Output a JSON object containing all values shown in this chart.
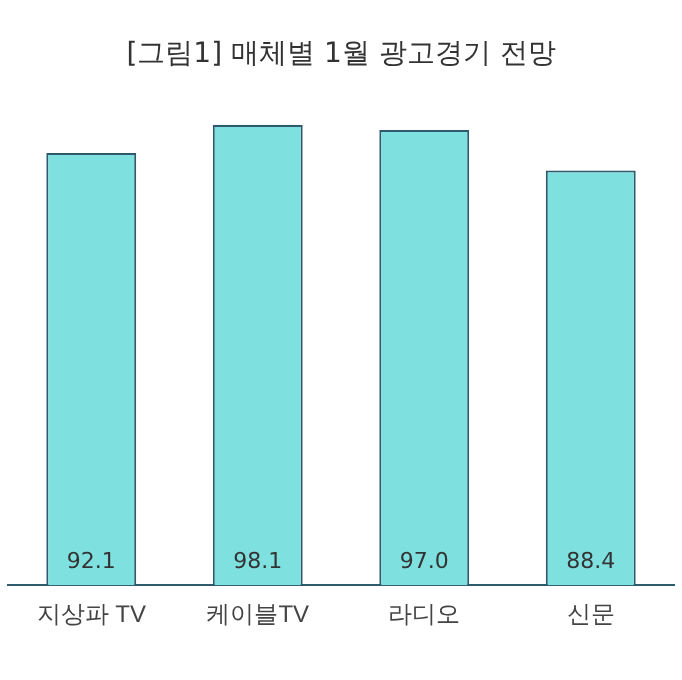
{
  "chart_data": {
    "type": "bar",
    "title": "[그림1] 매체별 1월 광고경기 전망",
    "categories": [
      "지상파 TV",
      "케이블TV",
      "라디오",
      "신문"
    ],
    "values": [
      92.1,
      98.1,
      97.0,
      88.4
    ],
    "value_labels": [
      "92.1",
      "98.1",
      "97.0",
      "88.4"
    ],
    "color": "#7fe0e0",
    "grid": false,
    "legend": false,
    "tick_labels": "x"
  }
}
